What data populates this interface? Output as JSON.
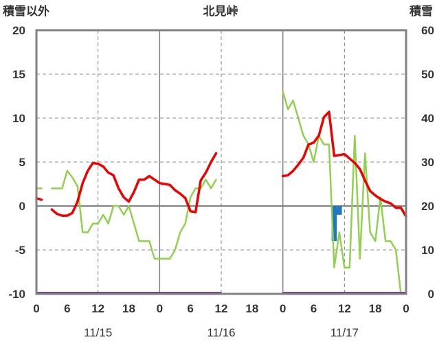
{
  "chart_data": {
    "type": "line",
    "title": "北見峠",
    "left_axis_label": "積雪以外",
    "right_axis_label": "積雪",
    "left_ylim": [
      -10,
      20
    ],
    "left_ticks": [
      "20",
      "15",
      "10",
      "5",
      "0",
      "-5",
      "-10"
    ],
    "right_ylim": [
      0,
      60
    ],
    "right_ticks": [
      "60",
      "50",
      "40",
      "30",
      "20",
      "10",
      "0"
    ],
    "x_range_hours": [
      0,
      72
    ],
    "x_tick_labels": [
      "0",
      "6",
      "12",
      "18",
      "0",
      "6",
      "12",
      "18",
      "0",
      "6",
      "12",
      "18",
      "0"
    ],
    "date_labels": [
      {
        "hour": 12,
        "text": "11/15"
      },
      {
        "hour": 36,
        "text": "11/16"
      },
      {
        "hour": 60,
        "text": "11/17"
      }
    ],
    "grid": "dashed vertical at 12h, solid vertical at 0h, horizontal at 5 units",
    "colors": {
      "temperature": "#ee0000",
      "snow_depth": "#92d050",
      "precipitation": "#1f77c0",
      "baseline": "#7030a0",
      "axis": "#808080",
      "grid": "#808080"
    },
    "series": [
      {
        "key": "temperature",
        "axis": "left",
        "segments": [
          [
            [
              0,
              0.9
            ],
            [
              1,
              0.7
            ]
          ],
          [
            [
              3,
              -0.4
            ],
            [
              4,
              -0.9
            ],
            [
              5,
              -1.1
            ],
            [
              6,
              -1.1
            ],
            [
              7,
              -0.8
            ],
            [
              8,
              0.5
            ],
            [
              9,
              2.6
            ],
            [
              10,
              4.0
            ],
            [
              11,
              4.9
            ],
            [
              12,
              4.8
            ],
            [
              13,
              4.5
            ],
            [
              14,
              3.8
            ],
            [
              15,
              3.5
            ],
            [
              16,
              2.0
            ],
            [
              17,
              1.0
            ],
            [
              18,
              0.5
            ],
            [
              19,
              1.6
            ],
            [
              20,
              3.0
            ],
            [
              21,
              3.0
            ],
            [
              22,
              3.4
            ],
            [
              23,
              3.0
            ],
            [
              24,
              2.6
            ],
            [
              25,
              2.5
            ],
            [
              26,
              2.4
            ],
            [
              27,
              1.8
            ],
            [
              28,
              1.4
            ],
            [
              29,
              0.9
            ],
            [
              30,
              -0.6
            ],
            [
              31,
              -0.7
            ],
            [
              32,
              2.9
            ],
            [
              33,
              3.8
            ],
            [
              34,
              5.0
            ],
            [
              35,
              6.0
            ]
          ],
          [
            [
              48,
              3.4
            ],
            [
              49,
              3.5
            ],
            [
              50,
              4.0
            ],
            [
              51,
              4.7
            ],
            [
              52,
              5.5
            ],
            [
              53,
              7.0
            ],
            [
              54,
              7.2
            ],
            [
              55,
              8.0
            ],
            [
              56,
              10.1
            ],
            [
              57,
              10.7
            ],
            [
              58,
              5.7
            ],
            [
              59,
              5.8
            ],
            [
              60,
              5.9
            ],
            [
              61,
              5.4
            ],
            [
              62,
              4.9
            ],
            [
              63,
              4.2
            ],
            [
              64,
              2.9
            ],
            [
              65,
              1.7
            ],
            [
              66,
              1.2
            ],
            [
              67,
              0.8
            ],
            [
              68,
              0.5
            ],
            [
              69,
              0.3
            ],
            [
              70,
              -0.2
            ],
            [
              71,
              -0.2
            ],
            [
              72,
              -1.2
            ]
          ]
        ]
      },
      {
        "key": "snow_depth",
        "axis": "right",
        "segments": [
          [
            [
              0,
              24
            ],
            [
              1,
              24
            ]
          ],
          [
            [
              3,
              24
            ],
            [
              4,
              24
            ],
            [
              5,
              24
            ],
            [
              6,
              28
            ],
            [
              7,
              26.5
            ],
            [
              8,
              24.5
            ],
            [
              9,
              14
            ],
            [
              10,
              14
            ],
            [
              11,
              16
            ],
            [
              12,
              16
            ],
            [
              13,
              18
            ],
            [
              14,
              16
            ],
            [
              15,
              20
            ],
            [
              16,
              20
            ],
            [
              17,
              18
            ],
            [
              18,
              20
            ],
            [
              19,
              16
            ],
            [
              20,
              12
            ],
            [
              21,
              12
            ],
            [
              22,
              12
            ],
            [
              23,
              8
            ],
            [
              24,
              8
            ],
            [
              25,
              8
            ],
            [
              26,
              8
            ],
            [
              27,
              10
            ],
            [
              28,
              14
            ],
            [
              29,
              16
            ],
            [
              30,
              22
            ],
            [
              31,
              24
            ],
            [
              32,
              24
            ],
            [
              33,
              26
            ],
            [
              34,
              24
            ],
            [
              35,
              26
            ]
          ],
          [
            [
              48,
              46
            ],
            [
              49,
              42
            ],
            [
              50,
              44
            ],
            [
              51,
              40
            ],
            [
              52,
              36
            ],
            [
              53,
              34
            ],
            [
              54,
              30
            ],
            [
              55,
              36
            ],
            [
              56,
              34
            ],
            [
              57,
              34
            ],
            [
              58,
              6
            ],
            [
              59,
              14
            ],
            [
              60,
              6
            ],
            [
              61,
              6
            ],
            [
              62,
              36
            ],
            [
              63,
              8
            ],
            [
              64,
              32
            ],
            [
              65,
              14
            ],
            [
              66,
              12
            ],
            [
              67,
              22
            ],
            [
              68,
              12
            ],
            [
              69,
              12
            ],
            [
              70,
              10
            ],
            [
              71,
              0
            ]
          ]
        ]
      },
      {
        "key": "precipitation",
        "axis": "left",
        "type": "bar",
        "bars": [
          {
            "hour": 58,
            "value": -4.0
          },
          {
            "hour": 59,
            "value": -1.0
          }
        ]
      }
    ]
  }
}
